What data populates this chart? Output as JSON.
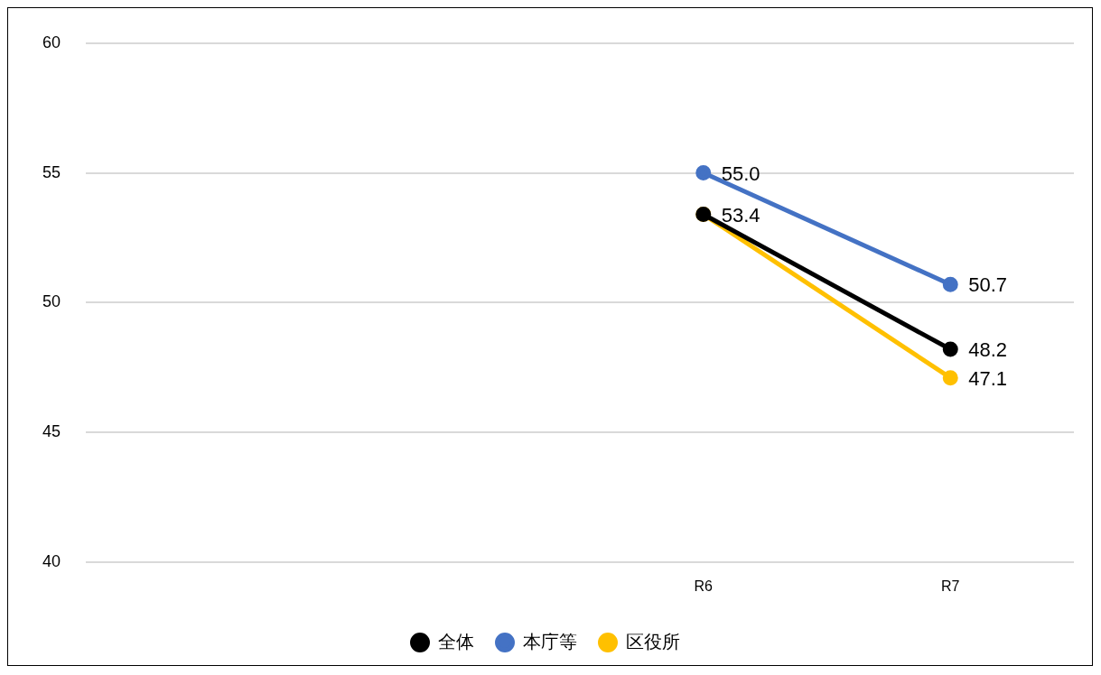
{
  "chart_data": {
    "type": "line",
    "categories": [
      null,
      null,
      "R6",
      "R7"
    ],
    "series": [
      {
        "name": "全体",
        "color": "#000000",
        "values": [
          null,
          null,
          53.4,
          48.2
        ],
        "value_labels": [
          null,
          null,
          null,
          "48.2"
        ]
      },
      {
        "name": "本庁等",
        "color": "#4472c4",
        "values": [
          null,
          null,
          55.0,
          50.7
        ],
        "value_labels": [
          null,
          null,
          "55.0",
          "50.7"
        ]
      },
      {
        "name": "区役所",
        "color": "#ffc000",
        "values": [
          null,
          null,
          53.4,
          47.1
        ],
        "value_labels": [
          null,
          null,
          "53.4",
          "47.1"
        ]
      }
    ],
    "ylim": [
      40,
      60
    ],
    "yticks": [
      40,
      45,
      50,
      55,
      60
    ],
    "grid": "y",
    "legend": "bottom",
    "marker": "circle",
    "line_style": "solid"
  }
}
